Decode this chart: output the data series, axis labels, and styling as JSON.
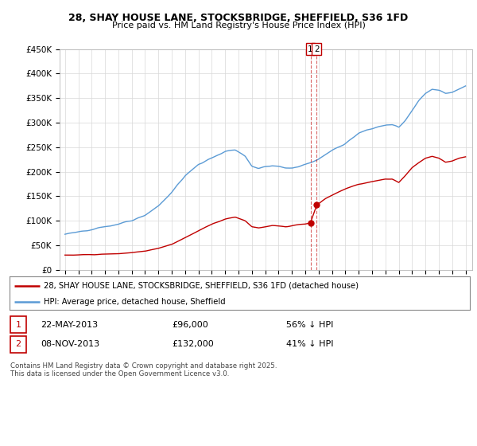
{
  "title": "28, SHAY HOUSE LANE, STOCKSBRIDGE, SHEFFIELD, S36 1FD",
  "subtitle": "Price paid vs. HM Land Registry's House Price Index (HPI)",
  "ylim": [
    0,
    450000
  ],
  "yticks": [
    0,
    50000,
    100000,
    150000,
    200000,
    250000,
    300000,
    350000,
    400000,
    450000
  ],
  "ytick_labels": [
    "£0",
    "£50K",
    "£100K",
    "£150K",
    "£200K",
    "£250K",
    "£300K",
    "£350K",
    "£400K",
    "£450K"
  ],
  "hpi_color": "#5b9bd5",
  "property_color": "#c00000",
  "sale1_price": 96000,
  "sale2_price": 132000,
  "legend_property": "28, SHAY HOUSE LANE, STOCKSBRIDGE, SHEFFIELD, S36 1FD (detached house)",
  "legend_hpi": "HPI: Average price, detached house, Sheffield",
  "table_row1": [
    "1",
    "22-MAY-2013",
    "£96,000",
    "56% ↓ HPI"
  ],
  "table_row2": [
    "2",
    "08-NOV-2013",
    "£132,000",
    "41% ↓ HPI"
  ],
  "footnote": "Contains HM Land Registry data © Crown copyright and database right 2025.\nThis data is licensed under the Open Government Licence v3.0.",
  "background_color": "#ffffff",
  "grid_color": "#d8d8d8",
  "hpi_anchors_x": [
    1995.0,
    1996.0,
    1997.0,
    1998.0,
    1999.0,
    2000.0,
    2001.0,
    2002.0,
    2003.0,
    2004.0,
    2005.0,
    2006.0,
    2007.0,
    2007.75,
    2008.5,
    2009.0,
    2009.5,
    2010.0,
    2010.5,
    2011.0,
    2011.5,
    2012.0,
    2012.5,
    2013.0,
    2013.4,
    2013.9,
    2014.5,
    2015.0,
    2015.5,
    2016.0,
    2016.5,
    2017.0,
    2017.5,
    2018.0,
    2018.5,
    2019.0,
    2019.5,
    2020.0,
    2020.5,
    2021.0,
    2021.5,
    2022.0,
    2022.5,
    2023.0,
    2023.5,
    2024.0,
    2024.5,
    2025.0
  ],
  "hpi_anchors_y": [
    72000,
    77000,
    83000,
    88000,
    93000,
    100000,
    112000,
    130000,
    158000,
    192000,
    215000,
    228000,
    242000,
    245000,
    232000,
    212000,
    207000,
    210000,
    212000,
    210000,
    208000,
    207000,
    210000,
    215000,
    219000,
    224000,
    234000,
    243000,
    250000,
    258000,
    268000,
    278000,
    285000,
    288000,
    292000,
    295000,
    296000,
    290000,
    305000,
    325000,
    345000,
    360000,
    368000,
    365000,
    360000,
    362000,
    368000,
    375000
  ],
  "prop_anchors_x": [
    1995.0,
    1996.0,
    1997.0,
    1998.0,
    1999.0,
    2000.0,
    2001.0,
    2002.0,
    2003.0,
    2004.0,
    2005.0,
    2006.0,
    2007.0,
    2007.75,
    2008.5,
    2009.0,
    2009.5,
    2010.0,
    2010.5,
    2011.0,
    2011.5,
    2012.0,
    2012.5,
    2013.0,
    2013.38,
    2013.85,
    2014.5,
    2015.0,
    2016.0,
    2017.0,
    2018.0,
    2019.0,
    2019.5,
    2020.0,
    2020.5,
    2021.0,
    2021.5,
    2022.0,
    2022.5,
    2023.0,
    2023.5,
    2024.0,
    2024.5,
    2025.0
  ],
  "prop_anchors_y": [
    30000,
    30500,
    31000,
    32000,
    33000,
    35000,
    38000,
    44000,
    52000,
    65000,
    80000,
    93000,
    103000,
    108000,
    100000,
    88000,
    85000,
    88000,
    90000,
    89000,
    88000,
    90000,
    92000,
    94000,
    96000,
    132000,
    145000,
    152000,
    165000,
    175000,
    180000,
    185000,
    185000,
    178000,
    192000,
    208000,
    218000,
    228000,
    232000,
    228000,
    220000,
    222000,
    228000,
    230000
  ]
}
